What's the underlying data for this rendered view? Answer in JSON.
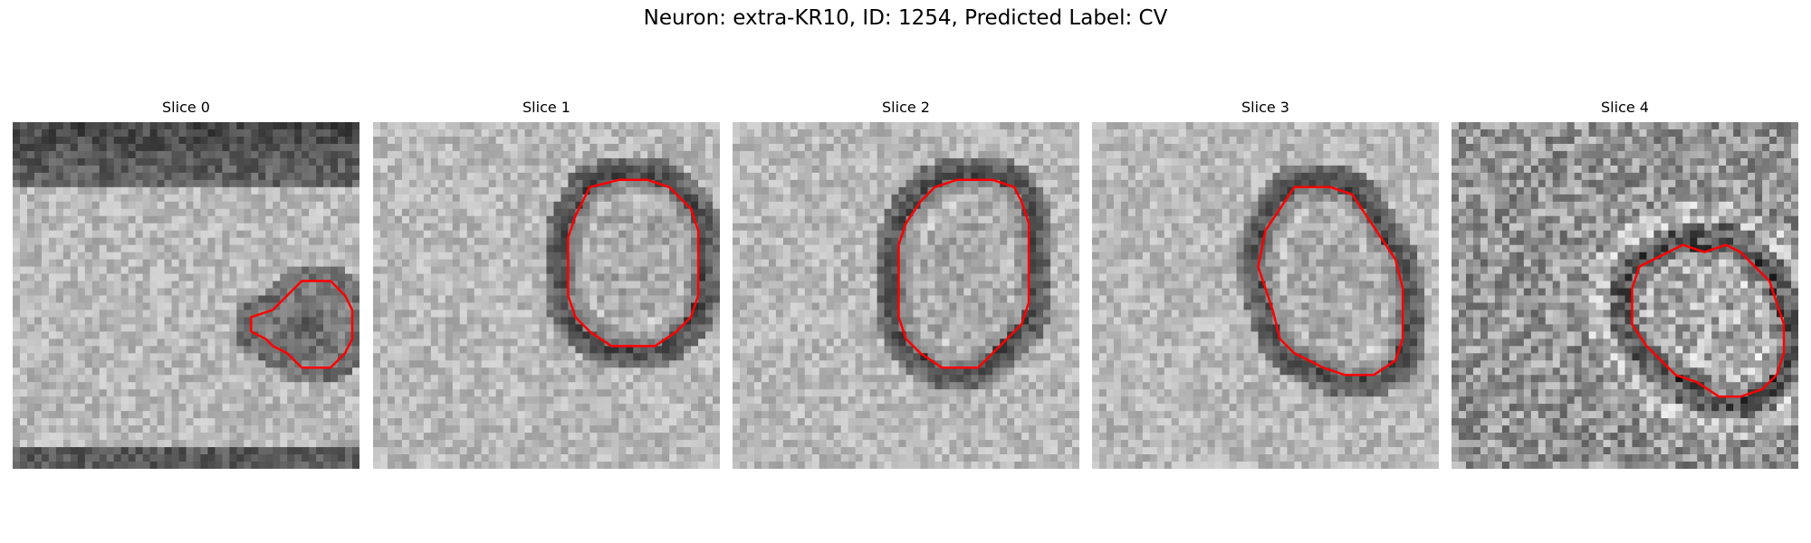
{
  "title": "Neuron: extra-KR10, ID: 1254, Predicted Label: CV",
  "contour_color": "#ff0000",
  "panels": [
    {
      "title": "Slice 0",
      "contour": [
        [
          33,
          27
        ],
        [
          36,
          26
        ],
        [
          38,
          24
        ],
        [
          40,
          22
        ],
        [
          44,
          22
        ],
        [
          46,
          24
        ],
        [
          47,
          26
        ],
        [
          47,
          30
        ],
        [
          46,
          32
        ],
        [
          44,
          34
        ],
        [
          40,
          34
        ],
        [
          38,
          32
        ],
        [
          36,
          31
        ],
        [
          35,
          30
        ],
        [
          33,
          29
        ]
      ]
    },
    {
      "title": "Slice 1",
      "contour": [
        [
          30,
          9
        ],
        [
          34,
          8
        ],
        [
          38,
          8
        ],
        [
          41,
          9
        ],
        [
          44,
          12
        ],
        [
          45,
          15
        ],
        [
          45,
          24
        ],
        [
          44,
          27
        ],
        [
          42,
          29
        ],
        [
          39,
          31
        ],
        [
          33,
          31
        ],
        [
          30,
          29
        ],
        [
          28,
          27
        ],
        [
          27,
          24
        ],
        [
          27,
          16
        ],
        [
          28,
          13
        ]
      ]
    },
    {
      "title": "Slice 2",
      "contour": [
        [
          31,
          8
        ],
        [
          36,
          8
        ],
        [
          39,
          9
        ],
        [
          40,
          11
        ],
        [
          41,
          14
        ],
        [
          41,
          25
        ],
        [
          40,
          28
        ],
        [
          38,
          30
        ],
        [
          36,
          32
        ],
        [
          34,
          34
        ],
        [
          29,
          34
        ],
        [
          26,
          32
        ],
        [
          24,
          30
        ],
        [
          23,
          27
        ],
        [
          23,
          17
        ],
        [
          24,
          14
        ],
        [
          26,
          11
        ],
        [
          28,
          9
        ]
      ]
    },
    {
      "title": "Slice 3",
      "contour": [
        [
          28,
          9
        ],
        [
          33,
          9
        ],
        [
          36,
          10
        ],
        [
          38,
          13
        ],
        [
          40,
          16
        ],
        [
          42,
          19
        ],
        [
          43,
          23
        ],
        [
          43,
          30
        ],
        [
          42,
          33
        ],
        [
          39,
          35
        ],
        [
          35,
          35
        ],
        [
          32,
          34
        ],
        [
          30,
          33
        ],
        [
          28,
          32
        ],
        [
          26,
          30
        ],
        [
          25,
          26
        ],
        [
          24,
          23
        ],
        [
          23,
          20
        ],
        [
          24,
          15
        ],
        [
          26,
          12
        ]
      ]
    },
    {
      "title": "Slice 4",
      "contour": [
        [
          35,
          18
        ],
        [
          38,
          17
        ],
        [
          40,
          18
        ],
        [
          42,
          20
        ],
        [
          44,
          22
        ],
        [
          45,
          25
        ],
        [
          46,
          28
        ],
        [
          46,
          32
        ],
        [
          45,
          35
        ],
        [
          43,
          37
        ],
        [
          40,
          38
        ],
        [
          37,
          38
        ],
        [
          34,
          36
        ],
        [
          31,
          35
        ],
        [
          29,
          33
        ],
        [
          27,
          31
        ],
        [
          25,
          28
        ],
        [
          25,
          23
        ],
        [
          26,
          20
        ],
        [
          28,
          19
        ],
        [
          30,
          18
        ],
        [
          32,
          17
        ]
      ]
    }
  ]
}
